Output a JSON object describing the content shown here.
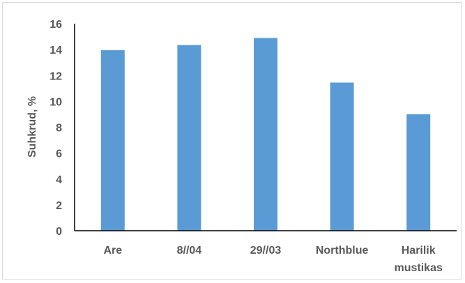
{
  "chart_data": {
    "type": "bar",
    "categories": [
      "Are",
      "8//04",
      "29//03",
      "Northblue",
      "Harilik mustikas"
    ],
    "category_lines": [
      [
        "Are"
      ],
      [
        "8//04"
      ],
      [
        "29//03"
      ],
      [
        "Northblue"
      ],
      [
        "Harilik",
        "mustikas"
      ]
    ],
    "values": [
      13.95,
      14.35,
      14.9,
      11.45,
      9.0
    ],
    "title": "",
    "xlabel": "",
    "ylabel": "Suhkrud, %",
    "ylim": [
      0,
      16
    ],
    "yticks": [
      0,
      2,
      4,
      6,
      8,
      10,
      12,
      14,
      16
    ],
    "grid": false,
    "legend": "none",
    "bar_color": "#5b9bd5",
    "axis_color": "#000000",
    "text_color": "#595959"
  }
}
